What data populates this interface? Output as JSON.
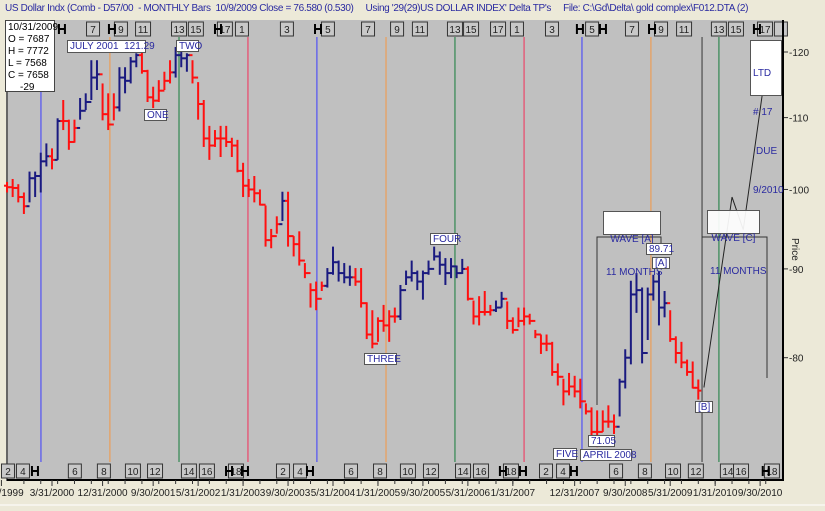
{
  "header": {
    "title": "US Dollar Indx (Comb - D57/00  - MONTHLY Bars  10/9/2009 Close = 76.580 (0.530)",
    "using": "Using '29(29)US DOLLAR INDEX' Delta TP's",
    "file": "File: C:\\Gd\\Delta\\ gold complex\\F012.DTA (2)"
  },
  "info_box": {
    "date": "10/31/2009",
    "open": "O = 7687",
    "high": "H = 7772",
    "low": "L = 7568",
    "close": "C = 7658",
    "change": "-29"
  },
  "annotations": {
    "july2001": "JULY 2001  121.29",
    "one": "ONE",
    "two": "TWO",
    "three": "THREE",
    "four": "FOUR",
    "five": "FIVE",
    "low_value": "71.05",
    "low_date": "APRIL 2008",
    "wave_a_line1": "WAVE [A]",
    "wave_a_line2": "11 MONTHS",
    "wave_a_peak": "89.71",
    "wave_a_label": "[A]",
    "wave_b_label": "[B]",
    "wave_c_line1": "WAVE [C]",
    "wave_c_line2": "11 MONTHS",
    "ltd_line1": "LTD",
    "ltd_line2": "# 17",
    "ltd_line3": "DUE",
    "ltd_line4": "9/2010"
  },
  "chart_data": {
    "type": "ohlc-bar",
    "title": "US Dollar Indx (Comb - D57/00  - MONTHLY Bars",
    "ylabel": "Price",
    "y_scale": "log",
    "ylim": [
      69.5,
      124.5
    ],
    "y_ticks": [
      80,
      90,
      100,
      110,
      120
    ],
    "x_tick_labels": [
      "6/30/1999",
      "3/31/2000",
      "12/31/2000",
      "9/30/2001",
      "5/31/2002",
      "1/31/2003",
      "9/30/2003",
      "5/31/2004",
      "1/31/2005",
      "9/30/2005",
      "5/31/2006",
      "1/31/2007",
      "12/31/2007",
      "9/30/2008",
      "5/31/2009",
      "1/31/2010",
      "9/30/2010"
    ],
    "grid": false,
    "colors": {
      "up_trend": "#1a1a80",
      "down_trend": "#ff1010",
      "background": "#c0c0c0"
    },
    "first_bar": "1999-07",
    "first_open": 100.5,
    "bars_columns": [
      "high",
      "low",
      "close",
      "trend"
    ],
    "bars": [
      [
        101.0,
        99.6,
        100.3,
        "r"
      ],
      [
        101.4,
        99.0,
        100.2,
        "r"
      ],
      [
        100.7,
        98.3,
        99.0,
        "r"
      ],
      [
        99.6,
        96.8,
        97.8,
        "r"
      ],
      [
        102.4,
        98.3,
        101.5,
        "b"
      ],
      [
        102.4,
        99.0,
        101.8,
        "b"
      ],
      [
        105.0,
        99.6,
        103.8,
        "b"
      ],
      [
        106.3,
        103.1,
        104.5,
        "b"
      ],
      [
        105.6,
        102.7,
        104.0,
        "r"
      ],
      [
        109.9,
        104.0,
        109.5,
        "b"
      ],
      [
        112.6,
        108.2,
        109.5,
        "r"
      ],
      [
        109.7,
        105.4,
        106.5,
        "r"
      ],
      [
        109.7,
        106.4,
        108.5,
        "r"
      ],
      [
        112.9,
        109.7,
        111.0,
        "b"
      ],
      [
        113.6,
        111.1,
        112.3,
        "b"
      ],
      [
        118.7,
        112.6,
        116.0,
        "b"
      ],
      [
        118.7,
        114.1,
        116.5,
        "b"
      ],
      [
        115.1,
        109.6,
        110.5,
        "r"
      ],
      [
        113.6,
        108.2,
        109.0,
        "r"
      ],
      [
        113.6,
        109.6,
        111.5,
        "r"
      ],
      [
        117.6,
        110.9,
        116.0,
        "b"
      ],
      [
        117.6,
        113.6,
        115.5,
        "b"
      ],
      [
        119.2,
        115.1,
        118.5,
        "b"
      ],
      [
        119.8,
        117.6,
        119.5,
        "b"
      ],
      [
        121.29,
        116.6,
        117.0,
        "r"
      ],
      [
        117.2,
        112.3,
        113.0,
        "r"
      ],
      [
        114.6,
        111.4,
        112.5,
        "r"
      ],
      [
        115.6,
        112.3,
        114.0,
        "r"
      ],
      [
        116.9,
        114.1,
        115.5,
        "r"
      ],
      [
        118.7,
        115.1,
        116.8,
        "r"
      ],
      [
        120.8,
        116.0,
        119.5,
        "b"
      ],
      [
        120.9,
        117.6,
        119.0,
        "b"
      ],
      [
        119.8,
        116.9,
        119.5,
        "b"
      ],
      [
        118.7,
        115.1,
        116.0,
        "r"
      ],
      [
        115.3,
        109.7,
        112.0,
        "r"
      ],
      [
        112.6,
        105.8,
        107.0,
        "r"
      ],
      [
        108.8,
        104.0,
        106.0,
        "r"
      ],
      [
        108.2,
        105.8,
        107.0,
        "r"
      ],
      [
        108.8,
        104.4,
        107.0,
        "r"
      ],
      [
        108.8,
        105.8,
        106.5,
        "r"
      ],
      [
        107.1,
        104.4,
        106.0,
        "r"
      ],
      [
        106.8,
        102.3,
        102.5,
        "r"
      ],
      [
        103.6,
        99.0,
        100.5,
        "r"
      ],
      [
        101.4,
        99.0,
        100.0,
        "r"
      ],
      [
        101.8,
        98.3,
        99.5,
        "r"
      ],
      [
        100.0,
        97.9,
        98.0,
        "r"
      ],
      [
        97.9,
        92.7,
        93.5,
        "r"
      ],
      [
        94.9,
        92.5,
        94.0,
        "r"
      ],
      [
        96.5,
        94.3,
        95.5,
        "r"
      ],
      [
        99.7,
        95.9,
        98.5,
        "b"
      ],
      [
        99.7,
        92.7,
        94.0,
        "r"
      ],
      [
        94.0,
        91.5,
        93.0,
        "r"
      ],
      [
        94.6,
        90.4,
        91.0,
        "r"
      ],
      [
        90.7,
        88.9,
        89.5,
        "r"
      ],
      [
        88.3,
        85.5,
        87.5,
        "r"
      ],
      [
        88.5,
        85.2,
        86.5,
        "r"
      ],
      [
        88.5,
        87.4,
        88.0,
        "r"
      ],
      [
        90.1,
        87.8,
        89.5,
        "b"
      ],
      [
        92.7,
        89.3,
        90.8,
        "b"
      ],
      [
        91.0,
        88.5,
        89.5,
        "b"
      ],
      [
        90.7,
        88.3,
        89.0,
        "b"
      ],
      [
        90.4,
        88.0,
        89.0,
        "b"
      ],
      [
        90.1,
        88.0,
        88.5,
        "r"
      ],
      [
        90.1,
        85.5,
        86.0,
        "r"
      ],
      [
        86.1,
        82.0,
        82.5,
        "r"
      ],
      [
        85.2,
        81.0,
        81.5,
        "r"
      ],
      [
        84.4,
        81.7,
        84.0,
        "r"
      ],
      [
        85.8,
        82.8,
        83.5,
        "r"
      ],
      [
        85.2,
        81.7,
        84.5,
        "r"
      ],
      [
        85.5,
        83.8,
        84.5,
        "r"
      ],
      [
        88.1,
        84.1,
        87.5,
        "b"
      ],
      [
        89.8,
        88.1,
        89.0,
        "b"
      ],
      [
        91.0,
        88.5,
        89.5,
        "b"
      ],
      [
        89.8,
        87.5,
        88.5,
        "b"
      ],
      [
        89.8,
        86.4,
        89.5,
        "b"
      ],
      [
        91.0,
        89.3,
        90.0,
        "b"
      ],
      [
        92.7,
        91.0,
        91.5,
        "b"
      ],
      [
        92.1,
        89.3,
        90.5,
        "b"
      ],
      [
        91.3,
        88.1,
        89.5,
        "b"
      ],
      [
        91.3,
        88.9,
        90.3,
        "b"
      ],
      [
        90.4,
        88.9,
        89.5,
        "b"
      ],
      [
        91.2,
        89.4,
        90.0,
        "b"
      ],
      [
        90.3,
        86.3,
        86.5,
        "r"
      ],
      [
        86.3,
        83.6,
        84.5,
        "r"
      ],
      [
        86.8,
        83.5,
        85.0,
        "r"
      ],
      [
        87.4,
        84.6,
        85.0,
        "r"
      ],
      [
        85.8,
        84.6,
        85.2,
        "r"
      ],
      [
        86.3,
        85.0,
        85.5,
        "b"
      ],
      [
        87.3,
        85.5,
        86.5,
        "b"
      ],
      [
        86.2,
        83.1,
        84.0,
        "r"
      ],
      [
        84.4,
        82.6,
        83.0,
        "r"
      ],
      [
        85.5,
        83.3,
        84.0,
        "r"
      ],
      [
        85.5,
        83.5,
        84.5,
        "r"
      ],
      [
        84.8,
        83.6,
        84.0,
        "r"
      ],
      [
        83.0,
        82.1,
        82.5,
        "r"
      ],
      [
        82.5,
        80.4,
        81.5,
        "r"
      ],
      [
        82.5,
        80.7,
        81.5,
        "r"
      ],
      [
        81.7,
        78.1,
        78.5,
        "r"
      ],
      [
        79.4,
        77.1,
        78.0,
        "r"
      ],
      [
        77.8,
        75.1,
        76.5,
        "r"
      ],
      [
        78.4,
        76.1,
        77.0,
        "r"
      ],
      [
        78.1,
        75.9,
        76.5,
        "r"
      ],
      [
        77.8,
        74.8,
        75.5,
        "r"
      ],
      [
        75.3,
        74.2,
        74.5,
        "r"
      ],
      [
        74.9,
        71.8,
        72.5,
        "r"
      ],
      [
        74.6,
        71.05,
        72.5,
        "r"
      ],
      [
        74.6,
        72.5,
        73.5,
        "r"
      ],
      [
        75.1,
        72.9,
        73.5,
        "r"
      ],
      [
        74.2,
        72.3,
        73.0,
        "r"
      ],
      [
        77.8,
        74.0,
        77.5,
        "b"
      ],
      [
        80.9,
        76.8,
        80.0,
        "b"
      ],
      [
        88.6,
        79.3,
        87.0,
        "b"
      ],
      [
        89.5,
        84.9,
        87.5,
        "b"
      ],
      [
        87.8,
        79.4,
        80.5,
        "b"
      ],
      [
        87.8,
        81.9,
        87.0,
        "b"
      ],
      [
        89.3,
        86.3,
        88.5,
        "b"
      ],
      [
        89.71,
        83.5,
        85.5,
        "b"
      ],
      [
        87.4,
        84.4,
        86.0,
        "b"
      ],
      [
        85.2,
        81.7,
        82.0,
        "r"
      ],
      [
        82.3,
        79.4,
        80.5,
        "r"
      ],
      [
        81.7,
        78.9,
        79.5,
        "r"
      ],
      [
        79.8,
        78.1,
        78.5,
        "r"
      ],
      [
        79.6,
        76.8,
        76.87,
        "r"
      ],
      [
        77.72,
        75.68,
        76.58,
        "r"
      ]
    ],
    "projection": [
      [
        "2009-11-01",
        76.9
      ],
      [
        "2010-04-01",
        99.0
      ],
      [
        "2010-06-01",
        94.8
      ],
      [
        "2010-10-01",
        117.2
      ]
    ],
    "cycle_lines": [
      {
        "date": "2000-01-02",
        "color": "#5a5af0"
      },
      {
        "date": "2001-01-10",
        "color": "#e8a060"
      },
      {
        "date": "2002-01-19",
        "color": "#3c8c5a"
      },
      {
        "date": "2003-01-27",
        "color": "#e85070"
      },
      {
        "date": "2004-02-05",
        "color": "#5a5af0"
      },
      {
        "date": "2005-02-14",
        "color": "#e8a060"
      },
      {
        "date": "2006-02-22",
        "color": "#3c8c5a"
      },
      {
        "date": "2007-03-01",
        "color": "#e85070"
      },
      {
        "date": "2008-01-10",
        "color": "#5a5af0"
      },
      {
        "date": "2009-01-18",
        "color": "#e8a060"
      },
      {
        "date": "2009-10-21",
        "color": "#555555"
      },
      {
        "date": "2010-01-21",
        "color": "#3c8c5a"
      }
    ],
    "top_markers": [
      {
        "date": "2000-10-10",
        "label": "7"
      },
      {
        "date": "2001-03-09",
        "label": "9"
      },
      {
        "date": "2001-07-07",
        "label": "11"
      },
      {
        "date": "2002-01-19",
        "label": "13"
      },
      {
        "date": "2002-04-19",
        "label": "15"
      },
      {
        "date": "2002-09-24",
        "label": "17"
      },
      {
        "date": "2002-12-25",
        "label": "1"
      },
      {
        "date": "2003-08-25",
        "label": "3"
      },
      {
        "date": "2004-04-04",
        "label": "5"
      },
      {
        "date": "2004-11-08",
        "label": "7"
      },
      {
        "date": "2005-04-13",
        "label": "9"
      },
      {
        "date": "2005-08-15",
        "label": "11"
      },
      {
        "date": "2006-02-22",
        "label": "13"
      },
      {
        "date": "2006-05-18",
        "label": "15"
      },
      {
        "date": "2006-10-12",
        "label": "17"
      },
      {
        "date": "2007-01-23",
        "label": "1"
      },
      {
        "date": "2007-07-30",
        "label": "3"
      },
      {
        "date": "2008-03-04",
        "label": "5"
      },
      {
        "date": "2008-10-07",
        "label": "7"
      },
      {
        "date": "2009-03-12",
        "label": "9"
      },
      {
        "date": "2009-07-15",
        "label": "11"
      },
      {
        "date": "2010-01-21",
        "label": "13"
      },
      {
        "date": "2010-04-22",
        "label": "15"
      },
      {
        "date": "2010-09-27",
        "label": "17"
      },
      {
        "date": "2010-12-22",
        "label": ""
      }
    ],
    "bottom_markers": [
      {
        "date": "1999-07-06",
        "label": "2"
      },
      {
        "date": "1999-09-26",
        "label": "4"
      },
      {
        "date": "2000-07-03",
        "label": "6"
      },
      {
        "date": "2000-12-08",
        "label": "8"
      },
      {
        "date": "2001-05-13",
        "label": "10"
      },
      {
        "date": "2001-09-11",
        "label": "12"
      },
      {
        "date": "2002-03-12",
        "label": "14"
      },
      {
        "date": "2002-06-18",
        "label": "16"
      },
      {
        "date": "2002-11-23",
        "label": "18"
      },
      {
        "date": "2003-08-04",
        "label": "2"
      },
      {
        "date": "2003-11-05",
        "label": "4"
      },
      {
        "date": "2004-08-07",
        "label": "6"
      },
      {
        "date": "2005-01-12",
        "label": "8"
      },
      {
        "date": "2005-06-11",
        "label": "10"
      },
      {
        "date": "2005-10-14",
        "label": "12"
      },
      {
        "date": "2006-04-05",
        "label": "14"
      },
      {
        "date": "2006-07-11",
        "label": "16"
      },
      {
        "date": "2006-12-21",
        "label": "18"
      },
      {
        "date": "2007-06-28",
        "label": "2"
      },
      {
        "date": "2007-09-29",
        "label": "4"
      },
      {
        "date": "2008-07-12",
        "label": "6"
      },
      {
        "date": "2008-12-16",
        "label": "8"
      },
      {
        "date": "2009-05-16",
        "label": "10"
      },
      {
        "date": "2009-09-18",
        "label": "12"
      },
      {
        "date": "2010-03-09",
        "label": "14"
      },
      {
        "date": "2010-05-19",
        "label": "16"
      },
      {
        "date": "2010-11-04",
        "label": "18"
      }
    ],
    "top_brackets": [
      "2000-04-24",
      "2001-01-21",
      "2002-08-17",
      "2004-02-11",
      "2007-12-29",
      "2008-05-02",
      "2009-01-24",
      "2010-08-14"
    ],
    "bottom_brackets": [
      "1999-11-30",
      "2002-10-16",
      "2003-01-11",
      "2003-12-28",
      "2006-11-08",
      "2007-02-25",
      "2007-11-27",
      "2010-10-01"
    ]
  }
}
